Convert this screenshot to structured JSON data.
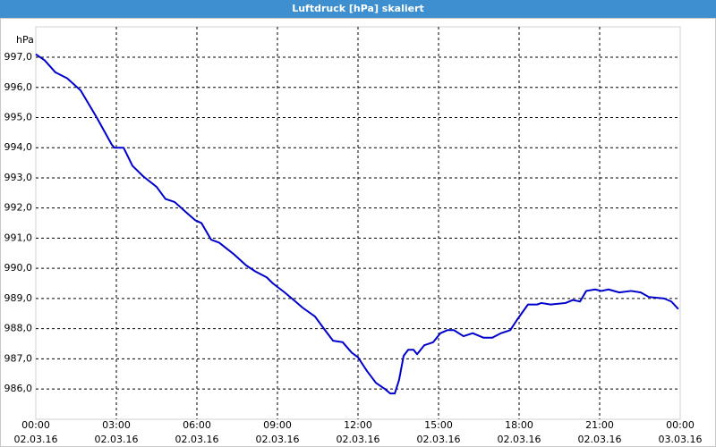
{
  "chart_data": {
    "type": "line",
    "title": "Luftdruck [hPa] skaliert",
    "y_unit": "hPa",
    "color": "#0000cc",
    "grid": true,
    "xlim": [
      0,
      24
    ],
    "xticks": [
      {
        "value": 0,
        "label": [
          "00:00",
          "02.03.16"
        ]
      },
      {
        "value": 3,
        "label": [
          "03:00",
          "02.03.16"
        ]
      },
      {
        "value": 6,
        "label": [
          "06:00",
          "02.03.16"
        ]
      },
      {
        "value": 9,
        "label": [
          "09:00",
          "02.03.16"
        ]
      },
      {
        "value": 12,
        "label": [
          "12:00",
          "02.03.16"
        ]
      },
      {
        "value": 15,
        "label": [
          "15:00",
          "02.03.16"
        ]
      },
      {
        "value": 18,
        "label": [
          "18:00",
          "02.03.16"
        ]
      },
      {
        "value": 21,
        "label": [
          "21:00",
          "02.03.16"
        ]
      },
      {
        "value": 24,
        "label": [
          "00:00",
          "03.03.16"
        ]
      }
    ],
    "ylim": [
      985,
      998
    ],
    "yticks": [
      {
        "value": 986,
        "label": "986,0"
      },
      {
        "value": 987,
        "label": "987,0"
      },
      {
        "value": 988,
        "label": "988,0"
      },
      {
        "value": 989,
        "label": "989,0"
      },
      {
        "value": 990,
        "label": "990,0"
      },
      {
        "value": 991,
        "label": "991,0"
      },
      {
        "value": 992,
        "label": "992,0"
      },
      {
        "value": 993,
        "label": "993,0"
      },
      {
        "value": 994,
        "label": "994,0"
      },
      {
        "value": 995,
        "label": "995,0"
      },
      {
        "value": 996,
        "label": "996,0"
      },
      {
        "value": 997,
        "label": "997,0"
      }
    ],
    "x": [
      0,
      0.33,
      0.73,
      1.17,
      1.67,
      2.27,
      2.83,
      2.93,
      3.27,
      3.6,
      4,
      4.5,
      4.83,
      5.17,
      5.67,
      5.93,
      6.17,
      6.53,
      6.83,
      7.4,
      7.83,
      8.17,
      8.6,
      8.83,
      9.27,
      9.67,
      9.93,
      10.4,
      10.73,
      11.07,
      11.43,
      11.77,
      12,
      12.33,
      12.67,
      13,
      13.2,
      13.37,
      13.53,
      13.7,
      13.87,
      14.07,
      14.2,
      14.47,
      14.8,
      15.07,
      15.33,
      15.57,
      15.93,
      16.27,
      16.67,
      17,
      17.33,
      17.67,
      17.93,
      18.33,
      18.67,
      18.83,
      19.17,
      19.73,
      20,
      20.27,
      20.5,
      20.83,
      21.07,
      21.33,
      21.73,
      22.17,
      22.53,
      22.83,
      23.4,
      23.67,
      23.93
    ],
    "values": [
      997.1,
      996.9,
      996.5,
      996.3,
      995.9,
      995.0,
      994.1,
      994.0,
      994.0,
      993.4,
      993.05,
      992.7,
      992.3,
      992.2,
      991.8,
      991.6,
      991.5,
      990.95,
      990.85,
      990.45,
      990.1,
      989.9,
      989.7,
      989.5,
      989.2,
      988.9,
      988.7,
      988.4,
      988.0,
      987.6,
      987.55,
      987.2,
      987.05,
      986.6,
      986.2,
      986.0,
      985.85,
      985.85,
      986.3,
      987.1,
      987.3,
      987.3,
      987.15,
      987.45,
      987.55,
      987.85,
      987.95,
      987.95,
      987.75,
      987.85,
      987.7,
      987.7,
      987.85,
      987.95,
      988.3,
      988.8,
      988.8,
      988.85,
      988.8,
      988.85,
      988.95,
      988.9,
      989.25,
      989.3,
      989.25,
      989.3,
      989.2,
      989.25,
      989.2,
      989.05,
      989.0,
      988.9,
      988.65
    ]
  }
}
